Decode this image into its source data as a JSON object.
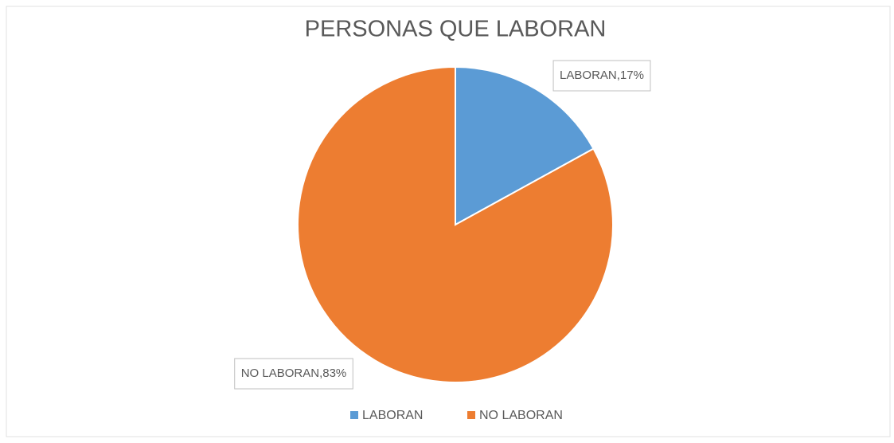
{
  "chart_data": {
    "type": "pie",
    "title": "PERSONAS QUE LABORAN",
    "categories": [
      "LABORAN",
      "NO LABORAN"
    ],
    "values": [
      17,
      83
    ],
    "value_labels": [
      "LABORAN,17%",
      "NO LABORAN,83%"
    ],
    "colors": [
      "#5b9bd5",
      "#ed7d31"
    ],
    "legend": "bottom"
  }
}
